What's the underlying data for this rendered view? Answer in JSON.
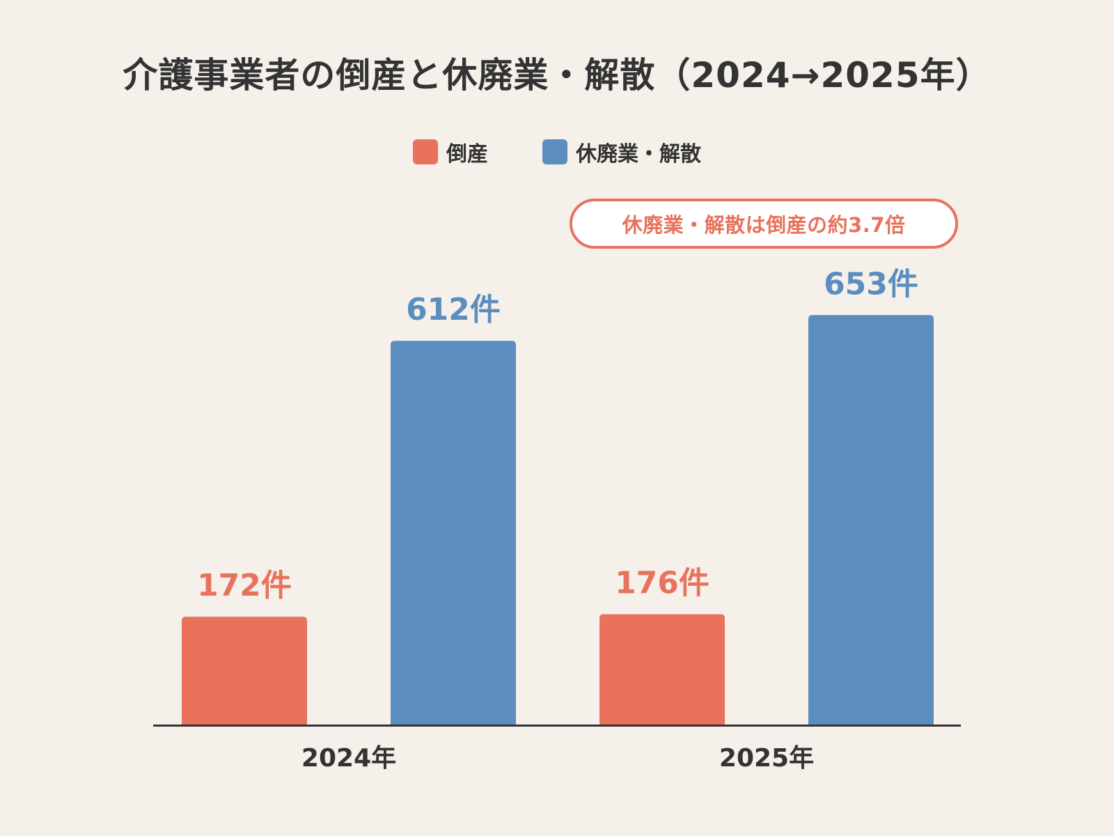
{
  "chart_data": {
    "type": "bar",
    "title": "介護事業者の倒産と休廃業・解散（2024→2025年）",
    "categories": [
      "2024年",
      "2025年"
    ],
    "series": [
      {
        "name": "倒産",
        "values": [
          172,
          176
        ],
        "labels": [
          "172件",
          "176件"
        ],
        "color": "#e8725c"
      },
      {
        "name": "休廃業・解散",
        "values": [
          612,
          653
        ],
        "labels": [
          "612件",
          "653件"
        ],
        "color": "#5b8dbe"
      }
    ],
    "annotation": "休廃業・解散は倒産の約3.7倍",
    "ylim": [
      0,
      700
    ],
    "grid": false,
    "legend_position": "top-center",
    "xlabel": "",
    "ylabel": ""
  }
}
